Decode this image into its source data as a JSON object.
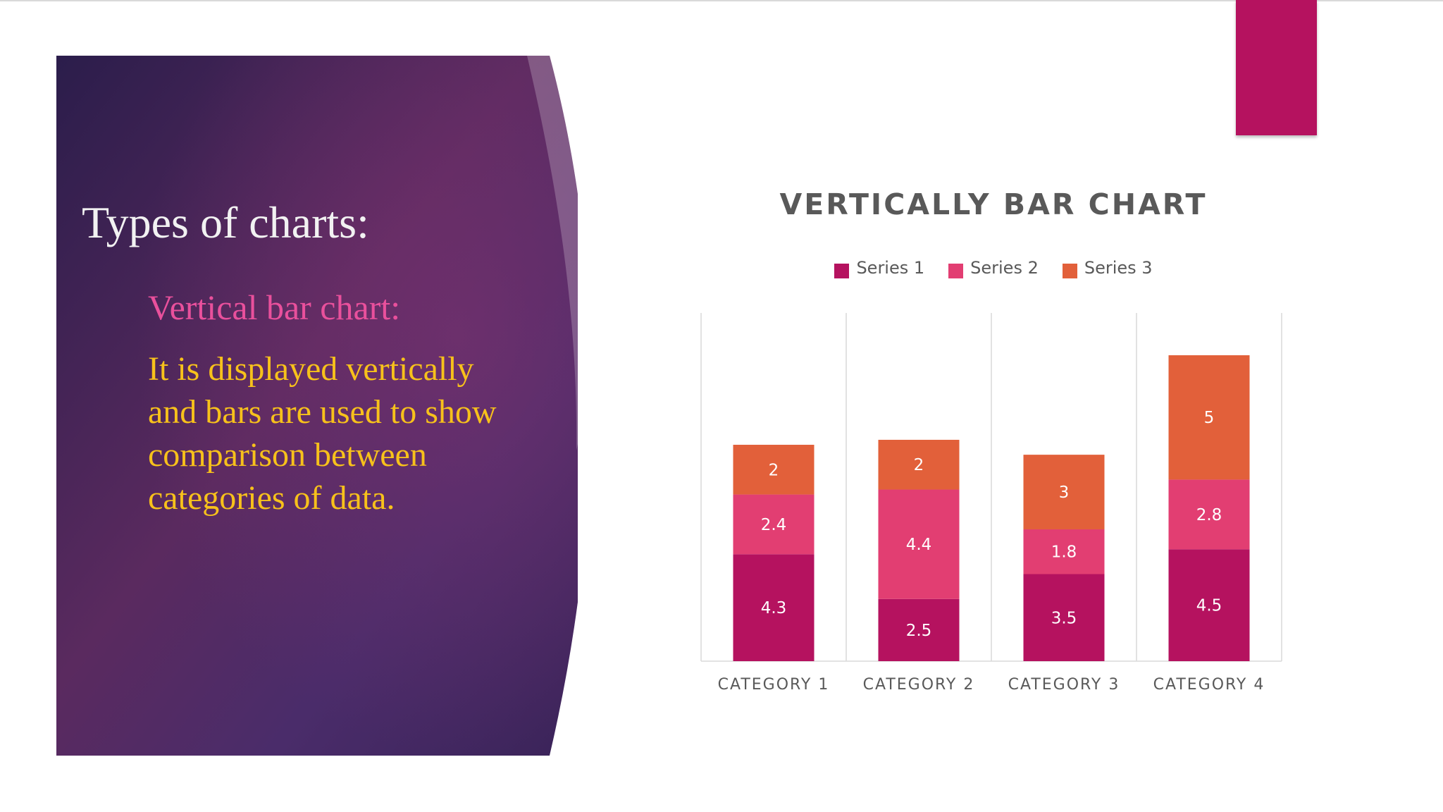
{
  "slide": {
    "heading": "Types of charts:",
    "subheading": "Vertical bar chart:",
    "body": "It is displayed vertically and bars are used to show comparison between categories of data."
  },
  "colors": {
    "accent": "#b5125f",
    "panel_dark": "#2f2150",
    "panel_mid": "#6a2d63",
    "series1": "#b5125f",
    "series2": "#e23e72",
    "series3": "#e2603a"
  },
  "chart_data": {
    "type": "bar",
    "stacked": true,
    "title": "VERTICALLY BAR CHART",
    "categories": [
      "CATEGORY 1",
      "CATEGORY 2",
      "CATEGORY 3",
      "CATEGORY 4"
    ],
    "series": [
      {
        "name": "Series 1",
        "values": [
          4.3,
          2.5,
          3.5,
          4.5
        ]
      },
      {
        "name": "Series 2",
        "values": [
          2.4,
          4.4,
          1.8,
          2.8
        ]
      },
      {
        "name": "Series 3",
        "values": [
          2,
          2,
          3,
          5
        ]
      }
    ],
    "ylim": [
      0,
      14
    ],
    "data_labels": true,
    "legend": "top",
    "grid": "vertical-category-dividers"
  }
}
